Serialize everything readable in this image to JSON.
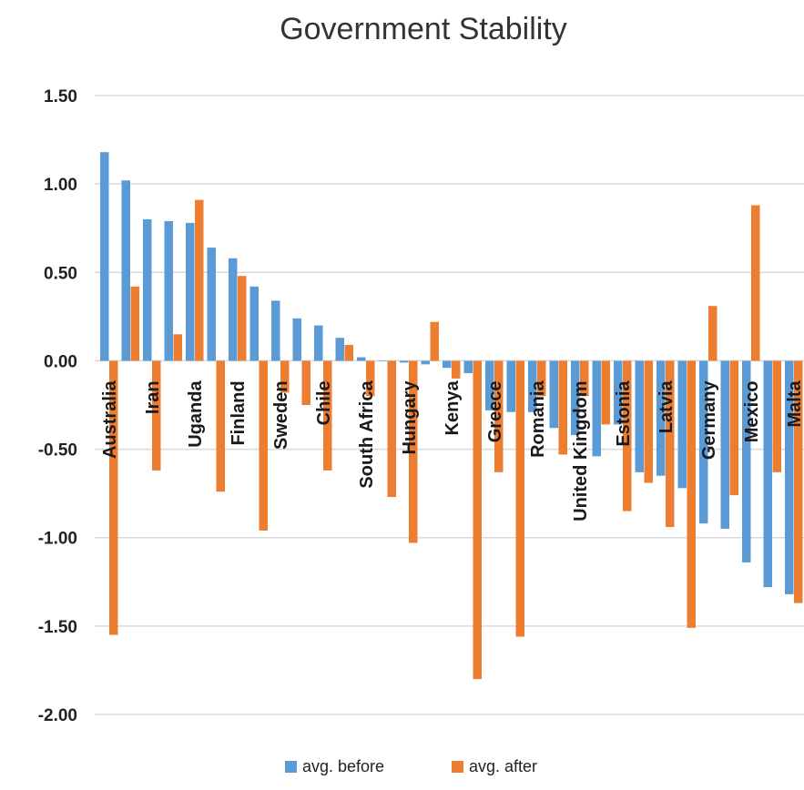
{
  "chart_data": {
    "type": "bar",
    "title": "Government Stability",
    "xlabel": "",
    "ylabel": "",
    "ylim": [
      -2.0,
      1.5
    ],
    "yticks": [
      "1.50",
      "1.00",
      "0.50",
      "0.00",
      "-0.50",
      "-1.00",
      "-1.50",
      "-2.00"
    ],
    "ytick_values": [
      1.5,
      1.0,
      0.5,
      0.0,
      -0.5,
      -1.0,
      -1.5,
      -2.0
    ],
    "grid": true,
    "legend_position": "bottom",
    "categories": [
      "Australia",
      "",
      "Iran",
      "",
      "Uganda",
      "",
      "Finland",
      "",
      "Sweden",
      "",
      "Chile",
      "",
      "South Africa",
      "",
      "Hungary",
      "",
      "Kenya",
      "",
      "Greece",
      "",
      "Romania",
      "",
      "United Kingdom",
      "",
      "Estonia",
      "",
      "Latvia",
      "",
      "Germany",
      "",
      "Mexico",
      "",
      "Malta"
    ],
    "series": [
      {
        "name": "avg. before",
        "color": "#5b9bd5",
        "values": [
          1.18,
          1.02,
          0.8,
          0.79,
          0.78,
          0.64,
          0.58,
          0.42,
          0.34,
          0.24,
          0.2,
          0.13,
          0.02,
          0.0,
          -0.01,
          -0.02,
          -0.04,
          -0.07,
          -0.28,
          -0.29,
          -0.29,
          -0.38,
          -0.42,
          -0.54,
          -0.36,
          -0.63,
          -0.65,
          -0.72,
          -0.92,
          -0.95,
          -1.14,
          -1.28,
          -1.32
        ]
      },
      {
        "name": "avg. after",
        "color": "#ed7d31",
        "values": [
          -1.55,
          0.42,
          -0.62,
          0.15,
          0.91,
          -0.74,
          0.48,
          -0.96,
          -0.18,
          -0.25,
          -0.62,
          0.09,
          -0.2,
          -0.77,
          -1.03,
          0.22,
          -0.1,
          -1.8,
          -0.63,
          -1.56,
          -0.2,
          -0.53,
          -0.2,
          -0.36,
          -0.85,
          -0.69,
          -0.94,
          -1.51,
          0.31,
          -0.76,
          0.88,
          -0.63,
          -1.37
        ]
      }
    ]
  }
}
